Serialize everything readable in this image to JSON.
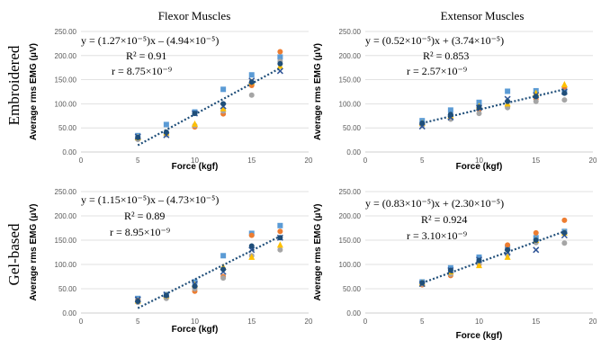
{
  "column_titles": [
    "Flexor Muscles",
    "Extensor Muscles"
  ],
  "row_labels": [
    "Embroidered",
    "Gel-based"
  ],
  "colors": {
    "blue": "#5b9bd5",
    "orange": "#ed7d31",
    "gray": "#a5a5a5",
    "gold": "#ffc000",
    "navy": "#2f5597",
    "darkblue": "#1f4e79",
    "trend": "#1f4e79",
    "grid": "#d9d9d9"
  },
  "chart_data": [
    {
      "type": "scatter",
      "xlabel": "Force (kgf)",
      "ylabel": "Average rms EMG (μV)",
      "xlim": [
        0,
        20
      ],
      "ylim": [
        0,
        250
      ],
      "xticks": [
        "0",
        "5",
        "10",
        "15",
        "20"
      ],
      "yticks": [
        "0.00",
        "50.00",
        "100.00",
        "150.00",
        "200.00",
        "250.00"
      ],
      "grid": "horizontal",
      "equation": "y = (1.27×10⁻⁵)x – (4.94×10⁻⁵)",
      "r2": "R² = 0.91",
      "r": "r = 8.75×10⁻⁹",
      "trend": {
        "x": [
          5,
          17.5
        ],
        "y": [
          14,
          174
        ]
      },
      "series": [
        {
          "marker": "square",
          "color": "blue",
          "x": [
            5,
            7.5,
            10,
            12.5,
            15,
            17.5
          ],
          "y": [
            34,
            57,
            83,
            130,
            160,
            197
          ]
        },
        {
          "marker": "circle",
          "color": "orange",
          "x": [
            5,
            7.5,
            10,
            12.5,
            15,
            17.5
          ],
          "y": [
            28,
            38,
            52,
            79,
            138,
            208
          ]
        },
        {
          "marker": "circle",
          "color": "gray",
          "x": [
            5,
            7.5,
            10,
            12.5,
            15,
            17.5
          ],
          "y": [
            26,
            36,
            55,
            85,
            118,
            188
          ]
        },
        {
          "marker": "triangle",
          "color": "gold",
          "x": [
            5,
            7.5,
            10,
            12.5,
            15,
            17.5
          ],
          "y": [
            30,
            40,
            58,
            90,
            145,
            178
          ]
        },
        {
          "marker": "x",
          "color": "navy",
          "x": [
            5,
            7.5,
            10,
            12.5,
            15,
            17.5
          ],
          "y": [
            32,
            35,
            80,
            95,
            148,
            168
          ]
        },
        {
          "marker": "circle",
          "color": "darkblue",
          "x": [
            5,
            7.5,
            10,
            12.5,
            15,
            17.5
          ],
          "y": [
            30,
            41,
            80,
            100,
            145,
            183
          ]
        }
      ]
    },
    {
      "type": "scatter",
      "xlabel": "Force (kgf)",
      "ylabel": "Average rms EMG (μV)",
      "xlim": [
        0,
        20
      ],
      "ylim": [
        0,
        250
      ],
      "xticks": [
        "0",
        "5",
        "10",
        "15",
        "20"
      ],
      "yticks": [
        "0.00",
        "50.00",
        "100.00",
        "150.00",
        "200.00",
        "250.00"
      ],
      "grid": "horizontal",
      "equation": "y = (0.52×10⁻⁵)x + (3.74×10⁻⁵)",
      "r2": "R² = 0.853",
      "r": "r = 2.57×10⁻⁹",
      "trend": {
        "x": [
          5,
          17.5
        ],
        "y": [
          60,
          130
        ]
      },
      "series": [
        {
          "marker": "square",
          "color": "blue",
          "x": [
            5,
            7.5,
            10,
            12.5,
            15,
            17.5
          ],
          "y": [
            65,
            87,
            103,
            126,
            127,
            128
          ]
        },
        {
          "marker": "circle",
          "color": "orange",
          "x": [
            5,
            7.5,
            10,
            12.5,
            15,
            17.5
          ],
          "y": [
            58,
            70,
            88,
            95,
            110,
            135
          ]
        },
        {
          "marker": "circle",
          "color": "gray",
          "x": [
            5,
            7.5,
            10,
            12.5,
            15,
            17.5
          ],
          "y": [
            55,
            68,
            80,
            92,
            105,
            108
          ]
        },
        {
          "marker": "triangle",
          "color": "gold",
          "x": [
            5,
            7.5,
            10,
            12.5,
            15,
            17.5
          ],
          "y": [
            60,
            75,
            95,
            100,
            122,
            140
          ]
        },
        {
          "marker": "x",
          "color": "navy",
          "x": [
            5,
            7.5,
            10,
            12.5,
            15,
            17.5
          ],
          "y": [
            53,
            72,
            92,
            110,
            118,
            125
          ]
        },
        {
          "marker": "circle",
          "color": "darkblue",
          "x": [
            5,
            7.5,
            10,
            12.5,
            15,
            17.5
          ],
          "y": [
            60,
            78,
            93,
            105,
            115,
            122
          ]
        }
      ]
    },
    {
      "type": "scatter",
      "xlabel": "Force (kgf)",
      "ylabel": "Average rms EMG (μV)",
      "xlim": [
        0,
        20
      ],
      "ylim": [
        0,
        250
      ],
      "xticks": [
        "0",
        "5",
        "10",
        "15",
        "20"
      ],
      "yticks": [
        "0.00",
        "50.00",
        "100.00",
        "150.00",
        "200.00",
        "250.00"
      ],
      "grid": "horizontal",
      "equation": "y = (1.15×10⁻⁵)x – (4.73×10⁻⁵)",
      "r2": "R² = 0.89",
      "r": "r = 8.95×10⁻⁹",
      "trend": {
        "x": [
          5,
          17.5
        ],
        "y": [
          10,
          158
        ]
      },
      "series": [
        {
          "marker": "square",
          "color": "blue",
          "x": [
            5,
            7.5,
            10,
            12.5,
            15,
            17.5
          ],
          "y": [
            30,
            38,
            64,
            118,
            164,
            180
          ]
        },
        {
          "marker": "circle",
          "color": "orange",
          "x": [
            5,
            7.5,
            10,
            12.5,
            15,
            17.5
          ],
          "y": [
            26,
            33,
            45,
            75,
            160,
            168
          ]
        },
        {
          "marker": "circle",
          "color": "gray",
          "x": [
            5,
            7.5,
            10,
            12.5,
            15,
            17.5
          ],
          "y": [
            22,
            30,
            50,
            72,
            118,
            130
          ]
        },
        {
          "marker": "triangle",
          "color": "gold",
          "x": [
            5,
            7.5,
            10,
            12.5,
            15,
            17.5
          ],
          "y": [
            25,
            36,
            58,
            95,
            115,
            140
          ]
        },
        {
          "marker": "x",
          "color": "navy",
          "x": [
            5,
            7.5,
            10,
            12.5,
            15,
            17.5
          ],
          "y": [
            28,
            38,
            60,
            85,
            130,
            155
          ]
        },
        {
          "marker": "circle",
          "color": "darkblue",
          "x": [
            5,
            7.5,
            10,
            12.5,
            15,
            17.5
          ],
          "y": [
            24,
            36,
            55,
            90,
            138,
            155
          ]
        }
      ]
    },
    {
      "type": "scatter",
      "xlabel": "Force (kgf)",
      "ylabel": "Average rms EMG (μV)",
      "xlim": [
        0,
        20
      ],
      "ylim": [
        0,
        250
      ],
      "xticks": [
        "0",
        "5",
        "10",
        "15",
        "20"
      ],
      "yticks": [
        "0.00",
        "50.00",
        "100.00",
        "150.00",
        "200.00",
        "250.00"
      ],
      "grid": "horizontal",
      "equation": "y = (0.83×10⁻⁵)x + (2.30×10⁻⁵)",
      "r2": "R² = 0.924",
      "r": "r = 3.10×10⁻⁹",
      "trend": {
        "x": [
          5,
          17.5
        ],
        "y": [
          62,
          168
        ]
      },
      "series": [
        {
          "marker": "square",
          "color": "blue",
          "x": [
            5,
            7.5,
            10,
            12.5,
            15,
            17.5
          ],
          "y": [
            64,
            93,
            115,
            135,
            155,
            168
          ]
        },
        {
          "marker": "circle",
          "color": "orange",
          "x": [
            5,
            7.5,
            10,
            12.5,
            15,
            17.5
          ],
          "y": [
            58,
            77,
            100,
            140,
            165,
            191
          ]
        },
        {
          "marker": "circle",
          "color": "gray",
          "x": [
            5,
            7.5,
            10,
            12.5,
            15,
            17.5
          ],
          "y": [
            60,
            80,
            102,
            120,
            145,
            144
          ]
        },
        {
          "marker": "triangle",
          "color": "gold",
          "x": [
            5,
            7.5,
            10,
            12.5,
            15,
            17.5
          ],
          "y": [
            62,
            85,
            98,
            115,
            150,
            165
          ]
        },
        {
          "marker": "x",
          "color": "navy",
          "x": [
            5,
            7.5,
            10,
            12.5,
            15,
            17.5
          ],
          "y": [
            60,
            88,
            110,
            125,
            130,
            160
          ]
        },
        {
          "marker": "circle",
          "color": "darkblue",
          "x": [
            5,
            7.5,
            10,
            12.5,
            15,
            17.5
          ],
          "y": [
            62,
            88,
            108,
            130,
            150,
            165
          ]
        }
      ]
    }
  ]
}
